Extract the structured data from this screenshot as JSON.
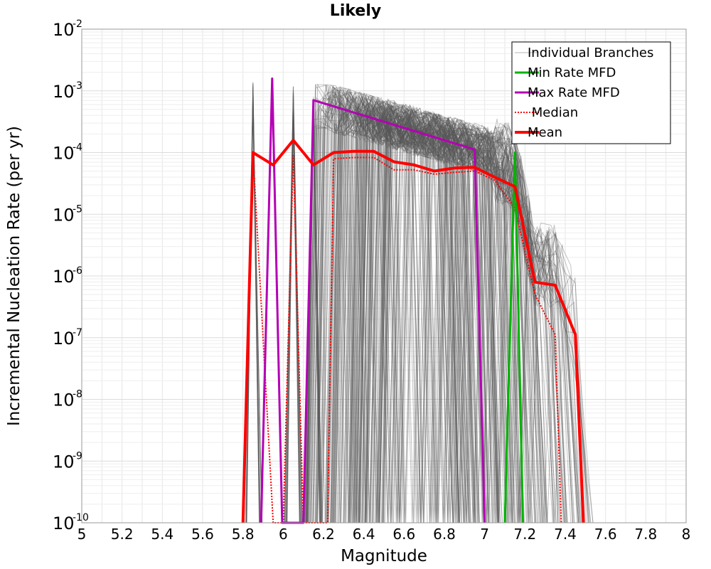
{
  "chart_data": {
    "type": "line",
    "title": "Likely",
    "xlabel": "Magnitude",
    "ylabel": "Incremental Nucleation Rate (per yr)",
    "xlim": [
      5,
      8
    ],
    "ylim_log10": [
      -10,
      -2
    ],
    "y_scale": "log",
    "x_ticks": [
      "5",
      "5.2",
      "5.4",
      "5.6",
      "5.8",
      "6",
      "6.2",
      "6.4",
      "6.6",
      "6.8",
      "7",
      "7.2",
      "7.4",
      "7.6",
      "7.8",
      "8"
    ],
    "y_ticks": [
      {
        "base": "10",
        "exp": "-2"
      },
      {
        "base": "10",
        "exp": "-3"
      },
      {
        "base": "10",
        "exp": "-4"
      },
      {
        "base": "10",
        "exp": "-5"
      },
      {
        "base": "10",
        "exp": "-6"
      },
      {
        "base": "10",
        "exp": "-7"
      },
      {
        "base": "10",
        "exp": "-8"
      },
      {
        "base": "10",
        "exp": "-9"
      },
      {
        "base": "10",
        "exp": "-10"
      }
    ],
    "legend": {
      "position": "top-right",
      "entries": [
        {
          "label": "Individual Branches",
          "color": "#b4b4b4",
          "style": "thin"
        },
        {
          "label": "Min Rate MFD",
          "color": "#00b400",
          "style": "solid"
        },
        {
          "label": "Max Rate MFD",
          "color": "#b400b4",
          "style": "solid"
        },
        {
          "label": " Median",
          "color": "#ff0000",
          "style": "dotted"
        },
        {
          "label": "Mean",
          "color": "#ff0000",
          "style": "thick"
        }
      ]
    },
    "series": [
      {
        "name": "Mean",
        "color": "#ff0000",
        "points": [
          [
            5.8,
            -10
          ],
          [
            5.85,
            -4.0
          ],
          [
            5.95,
            -4.2
          ],
          [
            6.05,
            -3.8
          ],
          [
            6.15,
            -4.2
          ],
          [
            6.25,
            -4.0
          ],
          [
            6.35,
            -3.98
          ],
          [
            6.45,
            -3.98
          ],
          [
            6.55,
            -4.15
          ],
          [
            6.65,
            -4.2
          ],
          [
            6.75,
            -4.3
          ],
          [
            6.85,
            -4.25
          ],
          [
            6.95,
            -4.24
          ],
          [
            7.05,
            -4.4
          ],
          [
            7.15,
            -4.55
          ],
          [
            7.25,
            -6.1
          ],
          [
            7.35,
            -6.15
          ],
          [
            7.45,
            -6.95
          ],
          [
            7.49,
            -10
          ]
        ]
      },
      {
        "name": "Median",
        "color": "#ff0000",
        "points": [
          [
            5.8,
            -10
          ],
          [
            5.85,
            -4.0
          ],
          [
            5.95,
            -10
          ],
          [
            6.0,
            -10
          ],
          [
            6.05,
            -4.05
          ],
          [
            6.1,
            -10
          ],
          [
            6.22,
            -10
          ],
          [
            6.25,
            -4.1
          ],
          [
            6.35,
            -4.08
          ],
          [
            6.45,
            -4.08
          ],
          [
            6.55,
            -4.28
          ],
          [
            6.65,
            -4.28
          ],
          [
            6.75,
            -4.35
          ],
          [
            6.85,
            -4.32
          ],
          [
            6.95,
            -4.3
          ],
          [
            7.05,
            -4.45
          ],
          [
            7.15,
            -4.9
          ],
          [
            7.25,
            -6.3
          ],
          [
            7.35,
            -6.95
          ],
          [
            7.38,
            -10
          ]
        ]
      },
      {
        "name": "Max Rate MFD",
        "color": "#b400b4",
        "points": [
          [
            5.89,
            -10
          ],
          [
            5.945,
            -2.8
          ],
          [
            5.995,
            -10
          ],
          [
            6.1,
            -10
          ],
          [
            6.15,
            -3.15
          ],
          [
            6.95,
            -3.95
          ],
          [
            7.0,
            -10
          ]
        ]
      },
      {
        "name": "Min Rate MFD",
        "color": "#00b400",
        "points": [
          [
            7.1,
            -10
          ],
          [
            7.15,
            -4.0
          ],
          [
            7.19,
            -10
          ]
        ]
      }
    ]
  }
}
